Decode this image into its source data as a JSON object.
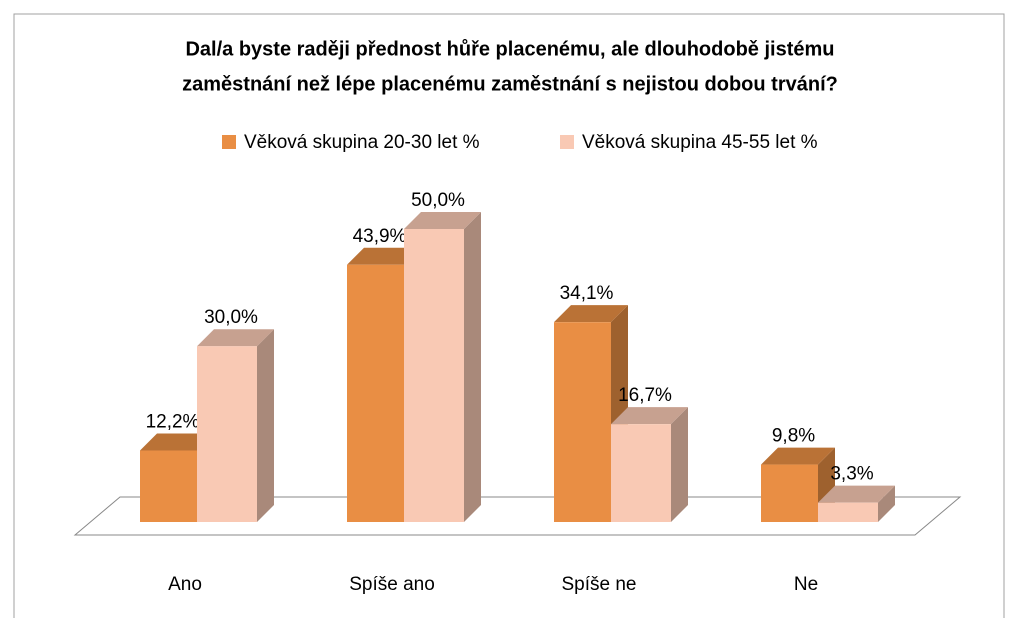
{
  "chart_data": {
    "type": "bar",
    "title": [
      "Dal/a byste raději přednost hůře placenému, ale dlouhodobě jistému",
      "zaměstnání než lépe placenému zaměstnání s nejistou dobou trvání?"
    ],
    "categories": [
      "Ano",
      "Spíše ano",
      "Spíše ne",
      "Ne"
    ],
    "series": [
      {
        "name": "Věková skupina  20-30 let %",
        "color": "#e98e44",
        "values": [
          12.2,
          43.9,
          34.1,
          9.8
        ],
        "value_labels": [
          "12,2%",
          "43,9%",
          "34,1%",
          "9,8%"
        ]
      },
      {
        "name": "Věková skupina 45-55 let %",
        "color": "#f9c9b4",
        "values": [
          30.0,
          50.0,
          16.7,
          3.3
        ],
        "value_labels": [
          "30,0%",
          "50,0%",
          "16,7%",
          "3,3%"
        ]
      }
    ]
  }
}
